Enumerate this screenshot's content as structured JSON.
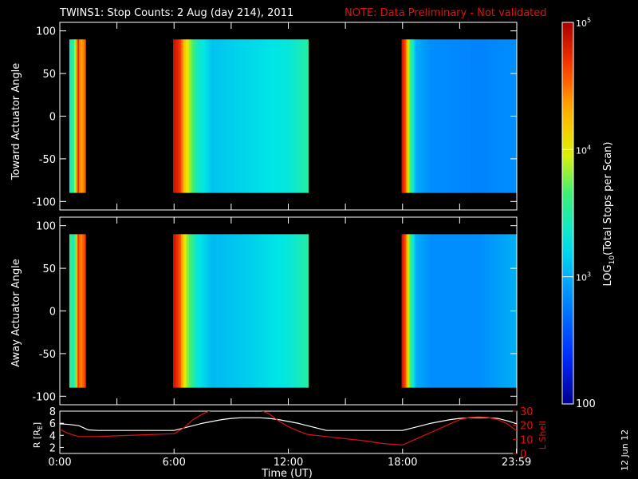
{
  "title": "TWINS1: Stop Counts:  2 Aug (day 214), 2011",
  "note": "NOTE: Data Preliminary - Not validated",
  "date_stamp": "12 Jun 12",
  "colors": {
    "background": "#000000",
    "text": "#ffffff",
    "note": "#e01010",
    "rl_curve": "#ffffff",
    "lshell_curve": "#e01010"
  },
  "chart_data": [
    {
      "type": "heatmap",
      "id": "toward",
      "title": "",
      "ylabel": "Toward Actuator Angle",
      "xlabel": "",
      "xlim": [
        0,
        24
      ],
      "ylim": [
        -110,
        110
      ],
      "y_ticks": [
        "100",
        "50",
        "0",
        "-50",
        "-100"
      ],
      "angle_range": [
        -90,
        90
      ],
      "data_intervals_ut": [
        [
          0.5,
          1.35
        ],
        [
          5.95,
          13.05
        ],
        [
          17.95,
          23.98
        ]
      ],
      "data_gaps_ut": [
        [
          0,
          0.5
        ],
        [
          1.35,
          5.95
        ],
        [
          13.05,
          17.95
        ]
      ],
      "log10_profile": [
        {
          "interval": 0,
          "t": [
            0.5,
            0.75,
            0.95,
            1.1,
            1.35
          ],
          "v": [
            3.4,
            3.6,
            4.8,
            4.3,
            4.6
          ]
        },
        {
          "interval": 1,
          "t": [
            5.95,
            6.3,
            6.6,
            7.2,
            8.0,
            10.0,
            12.0,
            13.05
          ],
          "v": [
            4.9,
            4.7,
            4.1,
            3.4,
            3.1,
            3.2,
            3.3,
            3.5
          ]
        },
        {
          "interval": 2,
          "t": [
            17.95,
            18.15,
            18.35,
            18.7,
            19.5,
            22.0,
            23.98
          ],
          "v": [
            4.9,
            4.6,
            3.8,
            3.0,
            2.85,
            2.8,
            2.85
          ]
        }
      ]
    },
    {
      "type": "heatmap",
      "id": "away",
      "title": "",
      "ylabel": "Away Actuator Angle",
      "xlabel": "",
      "xlim": [
        0,
        24
      ],
      "ylim": [
        -110,
        110
      ],
      "y_ticks": [
        "100",
        "50",
        "0",
        "-50",
        "-100"
      ],
      "angle_range": [
        -90,
        90
      ],
      "data_intervals_ut": [
        [
          0.5,
          1.35
        ],
        [
          5.95,
          13.05
        ],
        [
          17.95,
          23.98
        ]
      ],
      "data_gaps_ut": [
        [
          0,
          0.5
        ],
        [
          1.35,
          5.95
        ],
        [
          13.05,
          17.95
        ]
      ],
      "log10_profile": [
        {
          "interval": 0,
          "t": [
            0.5,
            0.75,
            0.95,
            1.1,
            1.35
          ],
          "v": [
            3.6,
            3.4,
            4.7,
            4.4,
            4.7
          ]
        },
        {
          "interval": 1,
          "t": [
            5.95,
            6.3,
            6.6,
            7.2,
            8.0,
            10.0,
            12.0,
            13.05
          ],
          "v": [
            4.9,
            4.6,
            3.9,
            3.3,
            3.05,
            3.15,
            3.3,
            3.5
          ]
        },
        {
          "interval": 2,
          "t": [
            17.95,
            18.15,
            18.35,
            18.7,
            19.5,
            22.0,
            23.98
          ],
          "v": [
            4.9,
            4.6,
            3.8,
            3.0,
            2.85,
            2.85,
            3.0
          ]
        }
      ]
    },
    {
      "type": "line",
      "id": "orbit",
      "title": "",
      "xlabel": "Time (UT)",
      "ylabel": "R [R",
      "ylabel_sub": "E",
      "ylabel_close": "]",
      "y2label": "L Shell",
      "xlim": [
        0,
        24
      ],
      "ylim": [
        1,
        8
      ],
      "y2lim": [
        0,
        30
      ],
      "x_ticks": [
        "0:00",
        "6:00",
        "12:00",
        "18:00",
        "23:59"
      ],
      "y_ticks": [
        "8",
        "6",
        "4",
        "2"
      ],
      "y2_ticks": [
        "30",
        "20",
        "10",
        "0"
      ],
      "series": [
        {
          "axis": "left",
          "x": [
            0,
            0.5,
            1,
            1.5,
            2,
            3,
            4,
            5,
            6,
            6.5,
            7,
            7.5,
            8,
            8.5,
            9,
            9.5,
            10,
            10.5,
            11,
            11.5,
            12,
            12.5,
            13,
            14,
            15,
            16,
            17,
            17.5,
            18,
            18.5,
            19,
            19.5,
            20,
            20.5,
            21,
            21.5,
            22,
            22.5,
            23,
            23.5,
            24
          ],
          "values": [
            5.9,
            5.8,
            5.6,
            4.9,
            4.8,
            4.8,
            4.8,
            4.8,
            4.8,
            5.2,
            5.6,
            6.0,
            6.3,
            6.6,
            6.8,
            6.9,
            6.9,
            6.9,
            6.8,
            6.6,
            6.3,
            6.0,
            5.6,
            4.8,
            4.8,
            4.8,
            4.8,
            4.8,
            4.8,
            5.2,
            5.6,
            6.0,
            6.3,
            6.6,
            6.8,
            6.9,
            6.9,
            6.9,
            6.8,
            6.4,
            5.9
          ]
        },
        {
          "axis": "right",
          "x": [
            0,
            0.5,
            1,
            1.5,
            2,
            3,
            4,
            5,
            6,
            6.5,
            7,
            7.5,
            8,
            10.5,
            11,
            11.5,
            12,
            12.5,
            13,
            14,
            15,
            16,
            17,
            17.5,
            18,
            18.5,
            19,
            19.5,
            20,
            20.5,
            21,
            21.5,
            22,
            22.5,
            23,
            23.5,
            24
          ],
          "values": [
            17,
            14,
            12,
            12,
            12,
            12.5,
            13,
            13.5,
            14,
            18,
            24,
            28,
            31,
            31,
            28,
            23,
            19,
            16,
            13.5,
            12,
            10.5,
            9,
            7,
            6.5,
            6,
            9,
            12,
            15,
            18,
            21,
            24,
            25.5,
            26,
            25.5,
            24,
            21,
            16
          ]
        }
      ]
    }
  ],
  "colorbar": {
    "label": "LOG",
    "label_sub": "10",
    "label_rest": "(Total Stops per Scan)",
    "log10_range": [
      2,
      5
    ],
    "tick_base": "10",
    "tick_exps": [
      "5",
      "4",
      "3"
    ],
    "bottom_label": "100"
  }
}
